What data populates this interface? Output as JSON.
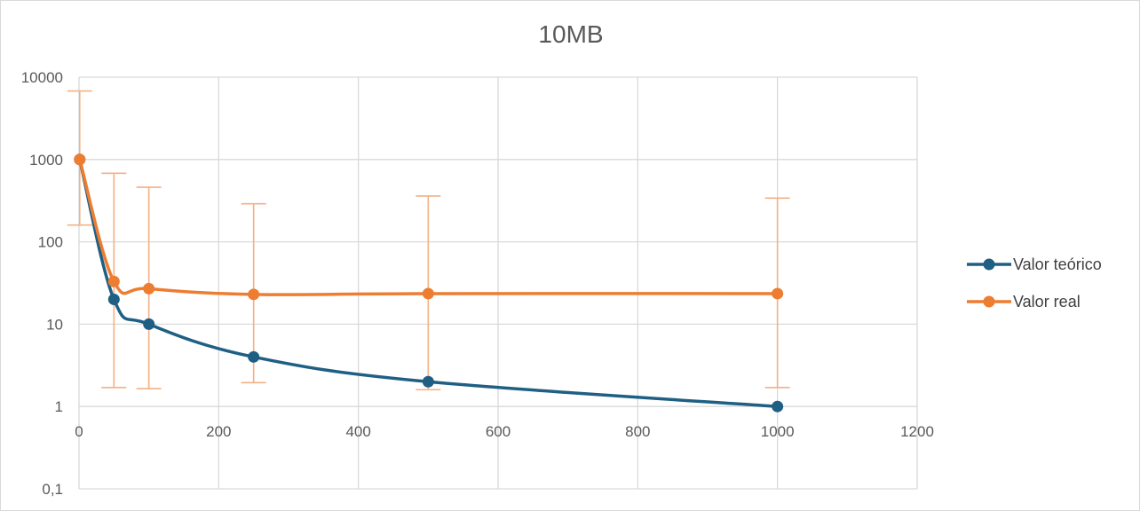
{
  "chart_data": {
    "type": "line",
    "title": "10MB",
    "xlabel": "",
    "ylabel": "",
    "xlim": [
      0,
      1200
    ],
    "ylim": [
      0.1,
      10000
    ],
    "yscale": "log",
    "x_ticks": [
      "0",
      "200",
      "400",
      "600",
      "800",
      "1000",
      "1200"
    ],
    "y_ticks": [
      "0,1",
      "1",
      "10",
      "100",
      "1000",
      "10000"
    ],
    "grid": true,
    "legend_position": "right",
    "series": [
      {
        "name": "Valor teórico",
        "color": "#1f5f84",
        "points": [
          {
            "x": 1,
            "y": 1000
          },
          {
            "x": 50,
            "y": 20
          },
          {
            "x": 100,
            "y": 10
          },
          {
            "x": 250,
            "y": 4
          },
          {
            "x": 500,
            "y": 2
          },
          {
            "x": 1000,
            "y": 1
          }
        ]
      },
      {
        "name": "Valor real",
        "color": "#ed7d31",
        "error_color": "#f4b183",
        "points": [
          {
            "x": 1,
            "y": 1000,
            "err_low": 160,
            "err_high": 6800
          },
          {
            "x": 50,
            "y": 33,
            "err_low": 1.7,
            "err_high": 680
          },
          {
            "x": 100,
            "y": 27,
            "err_low": 1.65,
            "err_high": 460
          },
          {
            "x": 250,
            "y": 23,
            "err_low": 1.95,
            "err_high": 290
          },
          {
            "x": 500,
            "y": 23.5,
            "err_low": 1.6,
            "err_high": 360
          },
          {
            "x": 1000,
            "y": 23.5,
            "err_low": 1.7,
            "err_high": 340
          }
        ]
      }
    ]
  }
}
